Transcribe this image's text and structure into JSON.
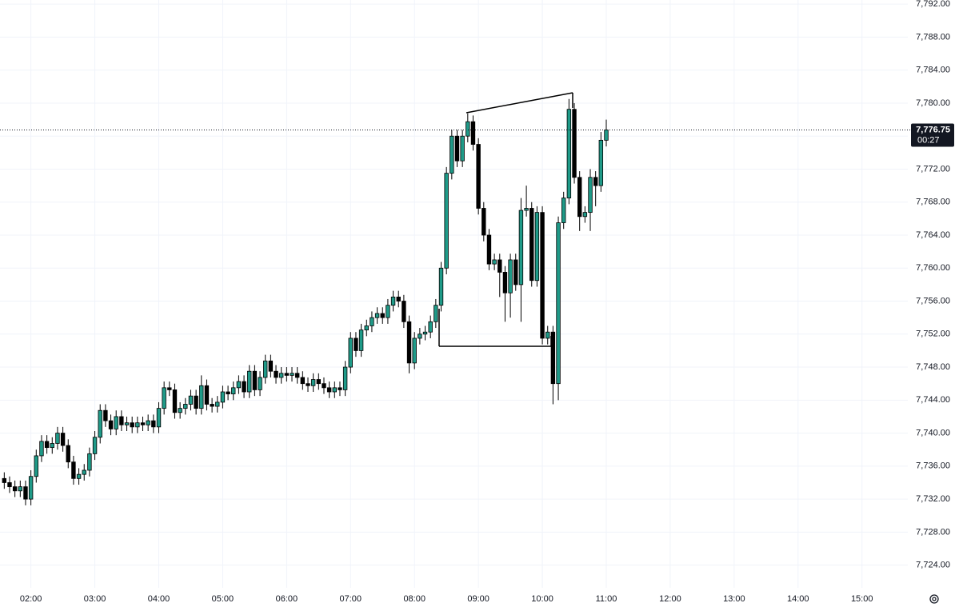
{
  "chart_data": {
    "type": "candlestick",
    "x": [
      "01:35",
      "01:40",
      "01:45",
      "01:50",
      "01:55",
      "02:00",
      "02:05",
      "02:10",
      "02:15",
      "02:20",
      "02:25",
      "02:30",
      "02:35",
      "02:40",
      "02:45",
      "02:50",
      "02:55",
      "03:00",
      "03:05",
      "03:10",
      "03:15",
      "03:20",
      "03:25",
      "03:30",
      "03:35",
      "03:40",
      "03:45",
      "03:50",
      "03:55",
      "04:00",
      "04:05",
      "04:10",
      "04:15",
      "04:20",
      "04:25",
      "04:30",
      "04:35",
      "04:40",
      "04:45",
      "04:50",
      "04:55",
      "05:00",
      "05:05",
      "05:10",
      "05:15",
      "05:20",
      "05:25",
      "05:30",
      "05:35",
      "05:40",
      "05:45",
      "05:50",
      "05:55",
      "06:00",
      "06:05",
      "06:10",
      "06:15",
      "06:20",
      "06:25",
      "06:30",
      "06:35",
      "06:40",
      "06:45",
      "06:50",
      "06:55",
      "07:00",
      "07:05",
      "07:10",
      "07:15",
      "07:20",
      "07:25",
      "07:30",
      "07:35",
      "07:40",
      "07:45",
      "07:50",
      "07:55",
      "08:00",
      "08:05",
      "08:10",
      "08:15",
      "08:20",
      "08:25",
      "08:30",
      "08:35",
      "08:40",
      "08:45",
      "08:50",
      "08:55",
      "09:00",
      "09:05",
      "09:10",
      "09:15",
      "09:20",
      "09:25",
      "09:30",
      "09:35",
      "09:40",
      "09:45",
      "09:50",
      "09:55",
      "10:00",
      "10:05",
      "10:10",
      "10:15",
      "10:20",
      "10:25",
      "10:30",
      "10:35",
      "10:40",
      "10:45",
      "10:50",
      "10:55",
      "11:00"
    ],
    "open": [
      7734.5,
      7734,
      7733.5,
      7733,
      7733.5,
      7732,
      7734.75,
      7737.25,
      7739,
      7738.25,
      7738.75,
      7740,
      7738.5,
      7736.5,
      7734.5,
      7735,
      7735.5,
      7737.5,
      7739.5,
      7742.75,
      7741.5,
      7740.5,
      7742,
      7741,
      7741.25,
      7740.75,
      7741.25,
      7741,
      7741.5,
      7740.75,
      7743,
      7745.5,
      7745.25,
      7742.5,
      7743,
      7743.5,
      7744.5,
      7743,
      7745.75,
      7743.5,
      7743.25,
      7743.75,
      7745,
      7744.75,
      7745.5,
      7746.25,
      7745,
      7747.5,
      7745.25,
      7746.75,
      7748.75,
      7747.5,
      7746.75,
      7747.25,
      7747,
      7747.25,
      7746.75,
      7746,
      7745.75,
      7746.5,
      7746,
      7745.5,
      7745,
      7745.5,
      7745.25,
      7748,
      7751.5,
      7750,
      7752.5,
      7753,
      7754,
      7754.5,
      7754,
      7755.5,
      7756.5,
      7756,
      7753.5,
      7748.5,
      7751.5,
      7752,
      7752.25,
      7753.5,
      7755.5,
      7760,
      7771.5,
      7776,
      7773,
      7776,
      7777.75,
      7775,
      7767.25,
      7764,
      7760.5,
      7761,
      7759.5,
      7757,
      7761,
      7758,
      7767,
      7767.25,
      7758.5,
      7766.75,
      7751.5,
      7752.25,
      7746,
      7765.5,
      7768.5,
      7779.25,
      7771,
      7766.25,
      7766.75,
      7771,
      7770,
      7775.5
    ],
    "high": [
      7735.25,
      7734.75,
      7734.25,
      7734.25,
      7734.25,
      7735.5,
      7738,
      7739.75,
      7739.75,
      7739.5,
      7740.75,
      7740.75,
      7739.25,
      7737.25,
      7735.75,
      7736.25,
      7738.25,
      7740.25,
      7743.5,
      7743.5,
      7742.25,
      7742.75,
      7742.75,
      7742,
      7742,
      7742,
      7742,
      7742.25,
      7742.25,
      7743.75,
      7746.25,
      7746.25,
      7746,
      7743.75,
      7744.25,
      7745.25,
      7745.25,
      7747,
      7746.5,
      7744.25,
      7744.5,
      7745.75,
      7745.75,
      7746.25,
      7747,
      7747,
      7748.25,
      7748.25,
      7747.5,
      7749.5,
      7749.5,
      7748.25,
      7748,
      7748,
      7748,
      7748,
      7747.5,
      7746.75,
      7747.25,
      7747.25,
      7746.75,
      7746.25,
      7746.25,
      7746.25,
      7748.75,
      7752.25,
      7752.25,
      7753.25,
      7753.75,
      7754.75,
      7755.25,
      7755.25,
      7756.25,
      7757.25,
      7757.25,
      7756.75,
      7754.25,
      7752.25,
      7752.75,
      7753,
      7754.25,
      7756.25,
      7760.75,
      7772.25,
      7776.75,
      7776.75,
      7776.75,
      7778.75,
      7778.5,
      7775.75,
      7768,
      7764.75,
      7761.75,
      7761.75,
      7760.25,
      7761.75,
      7761.75,
      7768.5,
      7770,
      7768,
      7767.5,
      7767.5,
      7753,
      7753,
      7766.25,
      7769.25,
      7780.5,
      7780,
      7771.75,
      7767.5,
      7772,
      7771.75,
      7776.5,
      7778
    ],
    "low": [
      7733.25,
      7732.75,
      7732.25,
      7732.25,
      7731.25,
      7731.25,
      7734,
      7736.5,
      7737.5,
      7737.5,
      7738,
      7737.75,
      7735.75,
      7733.75,
      7733.75,
      7734.25,
      7734.75,
      7736.75,
      7738.75,
      7740.75,
      7739.75,
      7739.75,
      7740.25,
      7740.25,
      7740,
      7740,
      7740.25,
      7740.25,
      7740,
      7740,
      7742.25,
      7744.5,
      7741.75,
      7741.75,
      7742.25,
      7742.75,
      7742.25,
      7742.25,
      7742.75,
      7742.5,
      7742.5,
      7743,
      7744,
      7744,
      7744.75,
      7744.25,
      7744.25,
      7744.5,
      7744.5,
      7746,
      7746.75,
      7746,
      7746,
      7746.25,
      7746.25,
      7746,
      7745.25,
      7745,
      7745,
      7745.25,
      7744.75,
      7744.25,
      7744.25,
      7744.5,
      7744.5,
      7747.25,
      7749.25,
      7749.25,
      7751.75,
      7752.25,
      7753.25,
      7753.25,
      7753.25,
      7754.75,
      7755.25,
      7752.75,
      7747.25,
      7747.75,
      7750.75,
      7751.25,
      7751.5,
      7752.75,
      7754.75,
      7759.25,
      7770.75,
      7772.25,
      7772.25,
      7775.25,
      7774.25,
      7766.5,
      7763.25,
      7759.75,
      7759.75,
      7756.5,
      7753.5,
      7754,
      7757.25,
      7753.5,
      7766.25,
      7757.75,
      7757.75,
      7750.75,
      7750.75,
      7743.5,
      7744,
      7764.75,
      7767.75,
      7770.25,
      7764.5,
      7765.5,
      7764.5,
      7767.5,
      7769.25,
      7774.75
    ],
    "close": [
      7734,
      7733.5,
      7733,
      7733.5,
      7732,
      7734.75,
      7737.25,
      7739,
      7738.25,
      7738.75,
      7740,
      7738.5,
      7736.5,
      7734.5,
      7735,
      7735.5,
      7737.5,
      7739.5,
      7742.75,
      7741.5,
      7740.5,
      7742,
      7741,
      7741.25,
      7740.75,
      7741.25,
      7741,
      7741.5,
      7740.75,
      7743,
      7745.5,
      7745.25,
      7742.5,
      7743,
      7743.5,
      7744.5,
      7743,
      7745.75,
      7743.5,
      7743.25,
      7743.75,
      7745,
      7744.75,
      7745.5,
      7746.25,
      7745,
      7747.5,
      7745.25,
      7746.75,
      7748.75,
      7747.5,
      7746.75,
      7747.25,
      7747,
      7747.25,
      7746.75,
      7746,
      7745.75,
      7746.5,
      7746,
      7745.5,
      7745,
      7745.5,
      7745.25,
      7748,
      7751.5,
      7750,
      7752.5,
      7753,
      7754,
      7754.5,
      7754,
      7755.5,
      7756.5,
      7756,
      7753.5,
      7748.5,
      7751.5,
      7752,
      7752.25,
      7753.5,
      7755.5,
      7760,
      7771.5,
      7776,
      7773,
      7776,
      7777.75,
      7775,
      7767.25,
      7764,
      7760.5,
      7761,
      7759.5,
      7757,
      7761,
      7758,
      7767,
      7767.25,
      7758.5,
      7766.75,
      7751.5,
      7752.25,
      7746,
      7765.5,
      7768.5,
      7779.25,
      7771,
      7766.25,
      7766.75,
      7771,
      7770,
      7775.5,
      7776.75
    ],
    "up_color": "#1f9a88",
    "down_color": "#000000",
    "xlim": [
      "01:31",
      "15:43"
    ],
    "xticks": [
      "02:00",
      "03:00",
      "04:00",
      "05:00",
      "06:00",
      "07:00",
      "08:00",
      "09:00",
      "10:00",
      "11:00",
      "12:00",
      "13:00",
      "14:00",
      "15:00"
    ],
    "ylim": [
      7721.25,
      7792.5
    ],
    "yticks": [
      {
        "value": 7724,
        "label": "7,724.00"
      },
      {
        "value": 7728,
        "label": "7,728.00"
      },
      {
        "value": 7732,
        "label": "7,732.00"
      },
      {
        "value": 7736,
        "label": "7,736.00"
      },
      {
        "value": 7740,
        "label": "7,740.00"
      },
      {
        "value": 7744,
        "label": "7,744.00"
      },
      {
        "value": 7748,
        "label": "7,748.00"
      },
      {
        "value": 7752,
        "label": "7,752.00"
      },
      {
        "value": 7756,
        "label": "7,756.00"
      },
      {
        "value": 7760,
        "label": "7,760.00"
      },
      {
        "value": 7764,
        "label": "7,764.00"
      },
      {
        "value": 7768,
        "label": "7,768.00"
      },
      {
        "value": 7772,
        "label": "7,772.00"
      },
      {
        "value": 7776,
        "label": "7,776.00"
      },
      {
        "value": 7780,
        "label": "7,780.00"
      },
      {
        "value": 7784,
        "label": "7,784.00"
      },
      {
        "value": 7788,
        "label": "7,788.00"
      },
      {
        "value": 7792,
        "label": "7,792.00"
      }
    ],
    "grid": true,
    "last_price": {
      "value": 7776.75,
      "label": "7,776.75"
    },
    "countdown": "00:27"
  }
}
